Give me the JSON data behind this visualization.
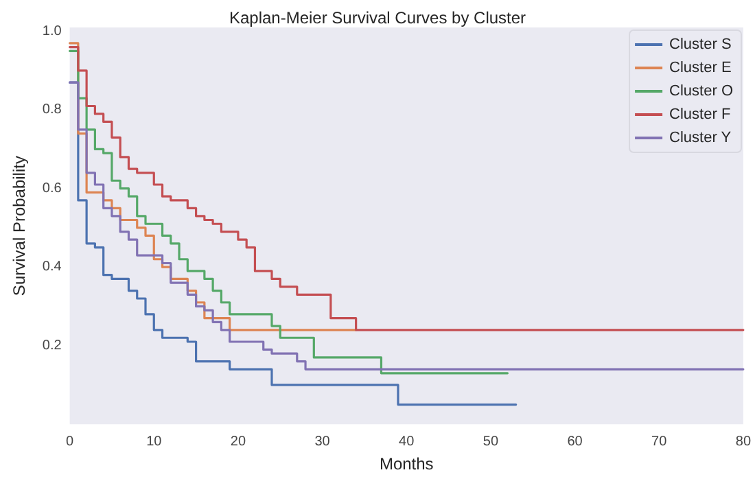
{
  "chart_data": {
    "type": "step",
    "title": "Kaplan-Meier Survival Curves by Cluster",
    "xlabel": "Months",
    "ylabel": "Survival Probability",
    "legend": "top right",
    "xlim": [
      0,
      80
    ],
    "xticks": [
      0,
      10,
      20,
      30,
      40,
      50,
      60,
      70,
      80
    ],
    "ylim": [
      0,
      1.01
    ],
    "yticks": [
      0.2,
      0.4,
      0.6,
      0.8,
      {
        "value": 1,
        "label": "1.0"
      }
    ],
    "series": [
      {
        "name": "Cluster S",
        "color": "#4c72b0",
        "x": [
          0,
          1,
          2,
          3,
          4,
          5,
          7,
          8,
          9,
          10,
          11,
          14,
          15,
          19,
          24,
          39,
          53
        ],
        "values": [
          0.87,
          0.57,
          0.46,
          0.45,
          0.38,
          0.37,
          0.34,
          0.32,
          0.28,
          0.24,
          0.22,
          0.21,
          0.16,
          0.14,
          0.1,
          0.05,
          0.05
        ]
      },
      {
        "name": "Cluster E",
        "color": "#dd8452",
        "x": [
          0,
          1,
          2,
          4,
          5,
          6,
          8,
          9,
          10,
          11,
          12,
          14,
          15,
          16,
          19,
          34
        ],
        "values": [
          0.97,
          0.74,
          0.59,
          0.57,
          0.55,
          0.52,
          0.5,
          0.48,
          0.42,
          0.4,
          0.37,
          0.34,
          0.31,
          0.27,
          0.24,
          0.24
        ]
      },
      {
        "name": "Cluster O",
        "color": "#55a868",
        "x": [
          0,
          1,
          2,
          3,
          4,
          5,
          6,
          7,
          8,
          9,
          11,
          12,
          13,
          14,
          16,
          17,
          18,
          19,
          24,
          25,
          29,
          37,
          52
        ],
        "values": [
          0.95,
          0.83,
          0.75,
          0.7,
          0.69,
          0.62,
          0.6,
          0.58,
          0.53,
          0.51,
          0.48,
          0.46,
          0.42,
          0.39,
          0.37,
          0.34,
          0.31,
          0.28,
          0.25,
          0.22,
          0.17,
          0.13,
          0.13
        ]
      },
      {
        "name": "Cluster F",
        "color": "#c44e52",
        "x": [
          0,
          1,
          2,
          3,
          4,
          5,
          6,
          7,
          8,
          10,
          11,
          12,
          14,
          15,
          16,
          17,
          18,
          20,
          21,
          22,
          24,
          25,
          27,
          31,
          34,
          80
        ],
        "values": [
          0.96,
          0.9,
          0.81,
          0.79,
          0.77,
          0.73,
          0.68,
          0.65,
          0.64,
          0.61,
          0.58,
          0.57,
          0.55,
          0.53,
          0.52,
          0.51,
          0.49,
          0.47,
          0.45,
          0.39,
          0.37,
          0.35,
          0.33,
          0.27,
          0.24,
          0.24
        ]
      },
      {
        "name": "Cluster Y",
        "color": "#8172b3",
        "x": [
          0,
          1,
          2,
          3,
          4,
          5,
          6,
          7,
          8,
          11,
          12,
          13,
          14,
          15,
          16,
          17,
          18,
          19,
          23,
          24,
          27,
          28,
          80
        ],
        "values": [
          0.87,
          0.75,
          0.64,
          0.61,
          0.55,
          0.53,
          0.49,
          0.47,
          0.43,
          0.41,
          0.36,
          0.36,
          0.33,
          0.3,
          0.29,
          0.26,
          0.24,
          0.21,
          0.19,
          0.18,
          0.16,
          0.14,
          0.14
        ]
      }
    ]
  }
}
